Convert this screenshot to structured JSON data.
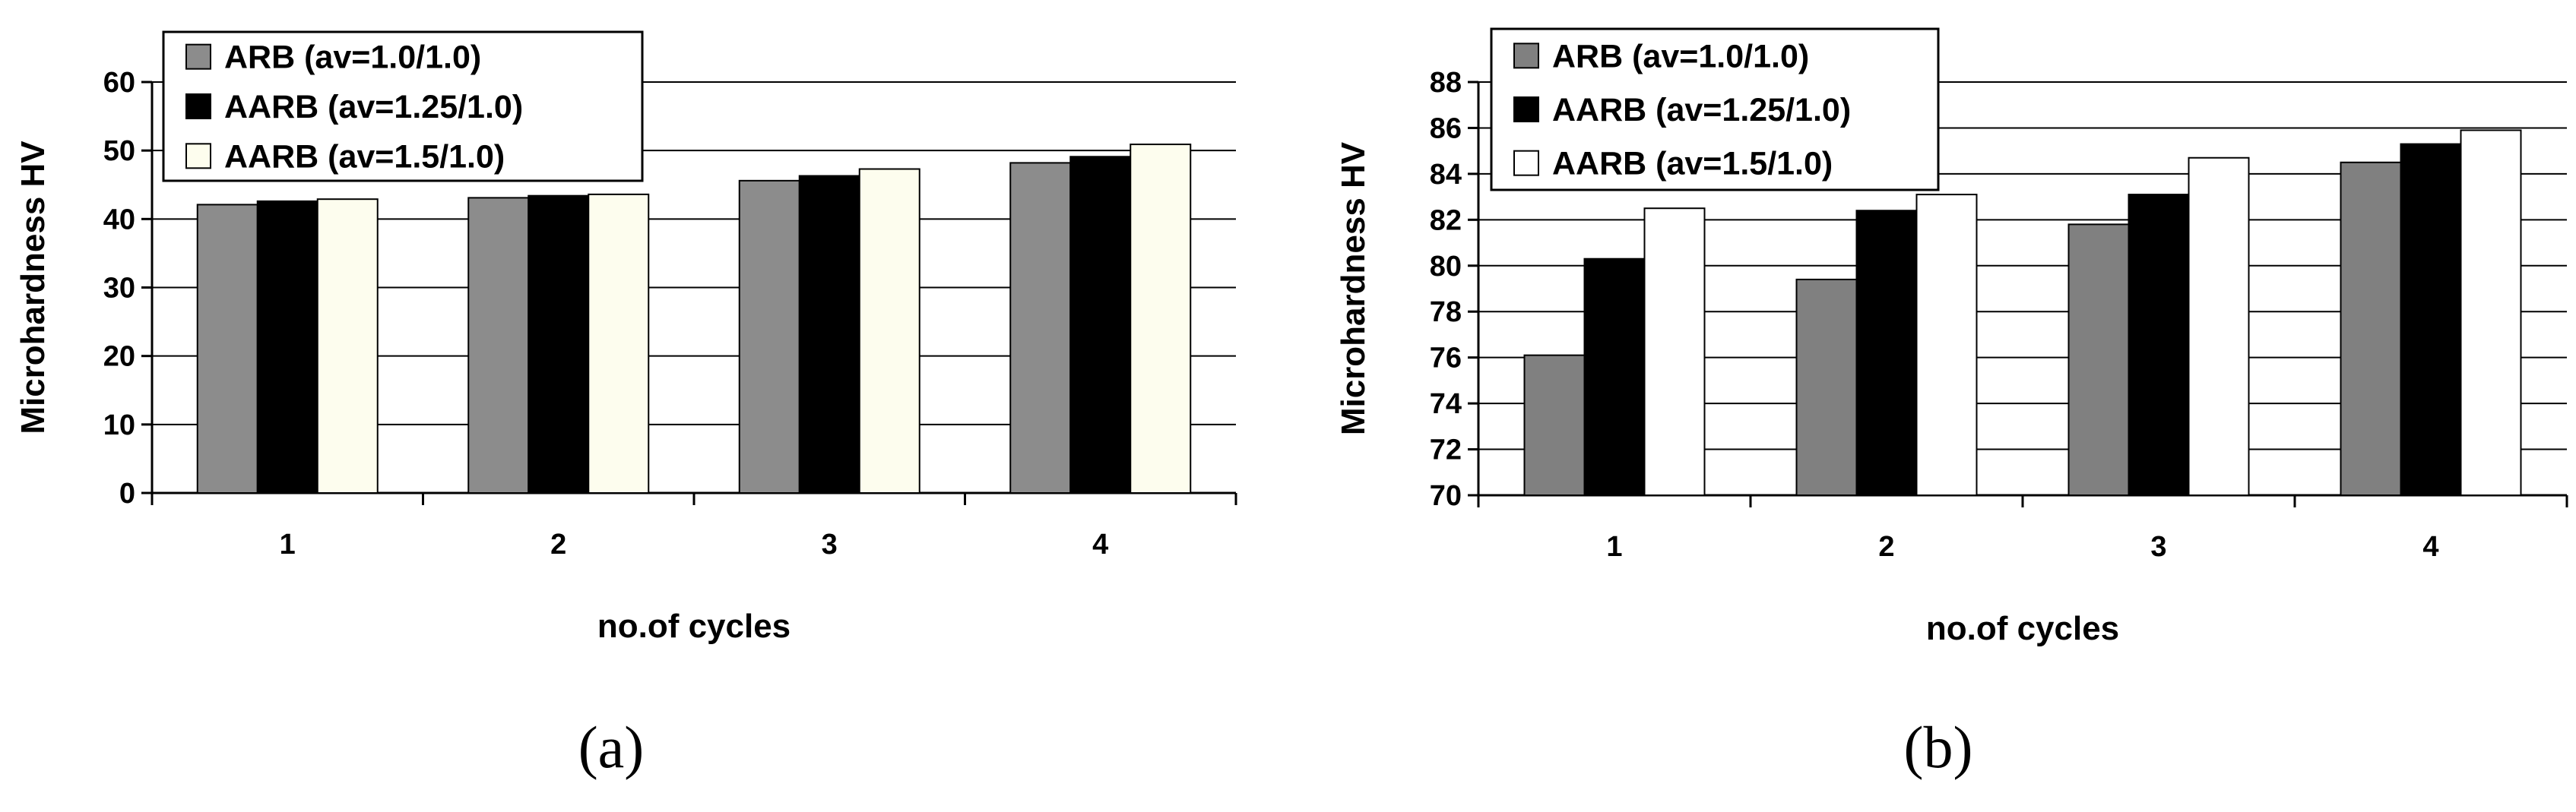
{
  "chart_data": [
    {
      "type": "bar",
      "panel_label": "(a)",
      "categories": [
        "1",
        "2",
        "3",
        "4"
      ],
      "series": [
        {
          "name": "ARB (av=1.0/1.0)",
          "values": [
            42.1,
            43.1,
            45.6,
            48.2
          ],
          "color": "#8c8c8c"
        },
        {
          "name": "AARB (av=1.25/1.0)",
          "values": [
            42.6,
            43.4,
            46.3,
            49.1
          ],
          "color": "#000000"
        },
        {
          "name": "AARB (av=1.5/1.0)",
          "values": [
            42.9,
            43.6,
            47.3,
            50.9
          ],
          "color": "#fdfdee"
        }
      ],
      "xlabel": "no.of cycles",
      "ylabel": "Microhardness HV",
      "ylim": [
        0,
        60
      ],
      "yticks": [
        0,
        10,
        20,
        30,
        40,
        50,
        60
      ],
      "grid": true,
      "legend_position": "top-left"
    },
    {
      "type": "bar",
      "panel_label": "(b)",
      "categories": [
        "1",
        "2",
        "3",
        "4"
      ],
      "series": [
        {
          "name": "ARB (av=1.0/1.0)",
          "values": [
            76.1,
            79.4,
            81.8,
            84.5
          ],
          "color": "#808080"
        },
        {
          "name": "AARB (av=1.25/1.0)",
          "values": [
            80.3,
            82.4,
            83.1,
            85.3
          ],
          "color": "#000000"
        },
        {
          "name": "AARB (av=1.5/1.0)",
          "values": [
            82.5,
            83.1,
            84.7,
            85.9
          ],
          "color": "#ffffff"
        }
      ],
      "xlabel": "no.of cycles",
      "ylabel": "Microhardness HV",
      "ylim": [
        70,
        88
      ],
      "yticks": [
        70,
        72,
        74,
        76,
        78,
        80,
        82,
        84,
        86,
        88
      ],
      "grid": true,
      "legend_position": "top-left"
    }
  ]
}
